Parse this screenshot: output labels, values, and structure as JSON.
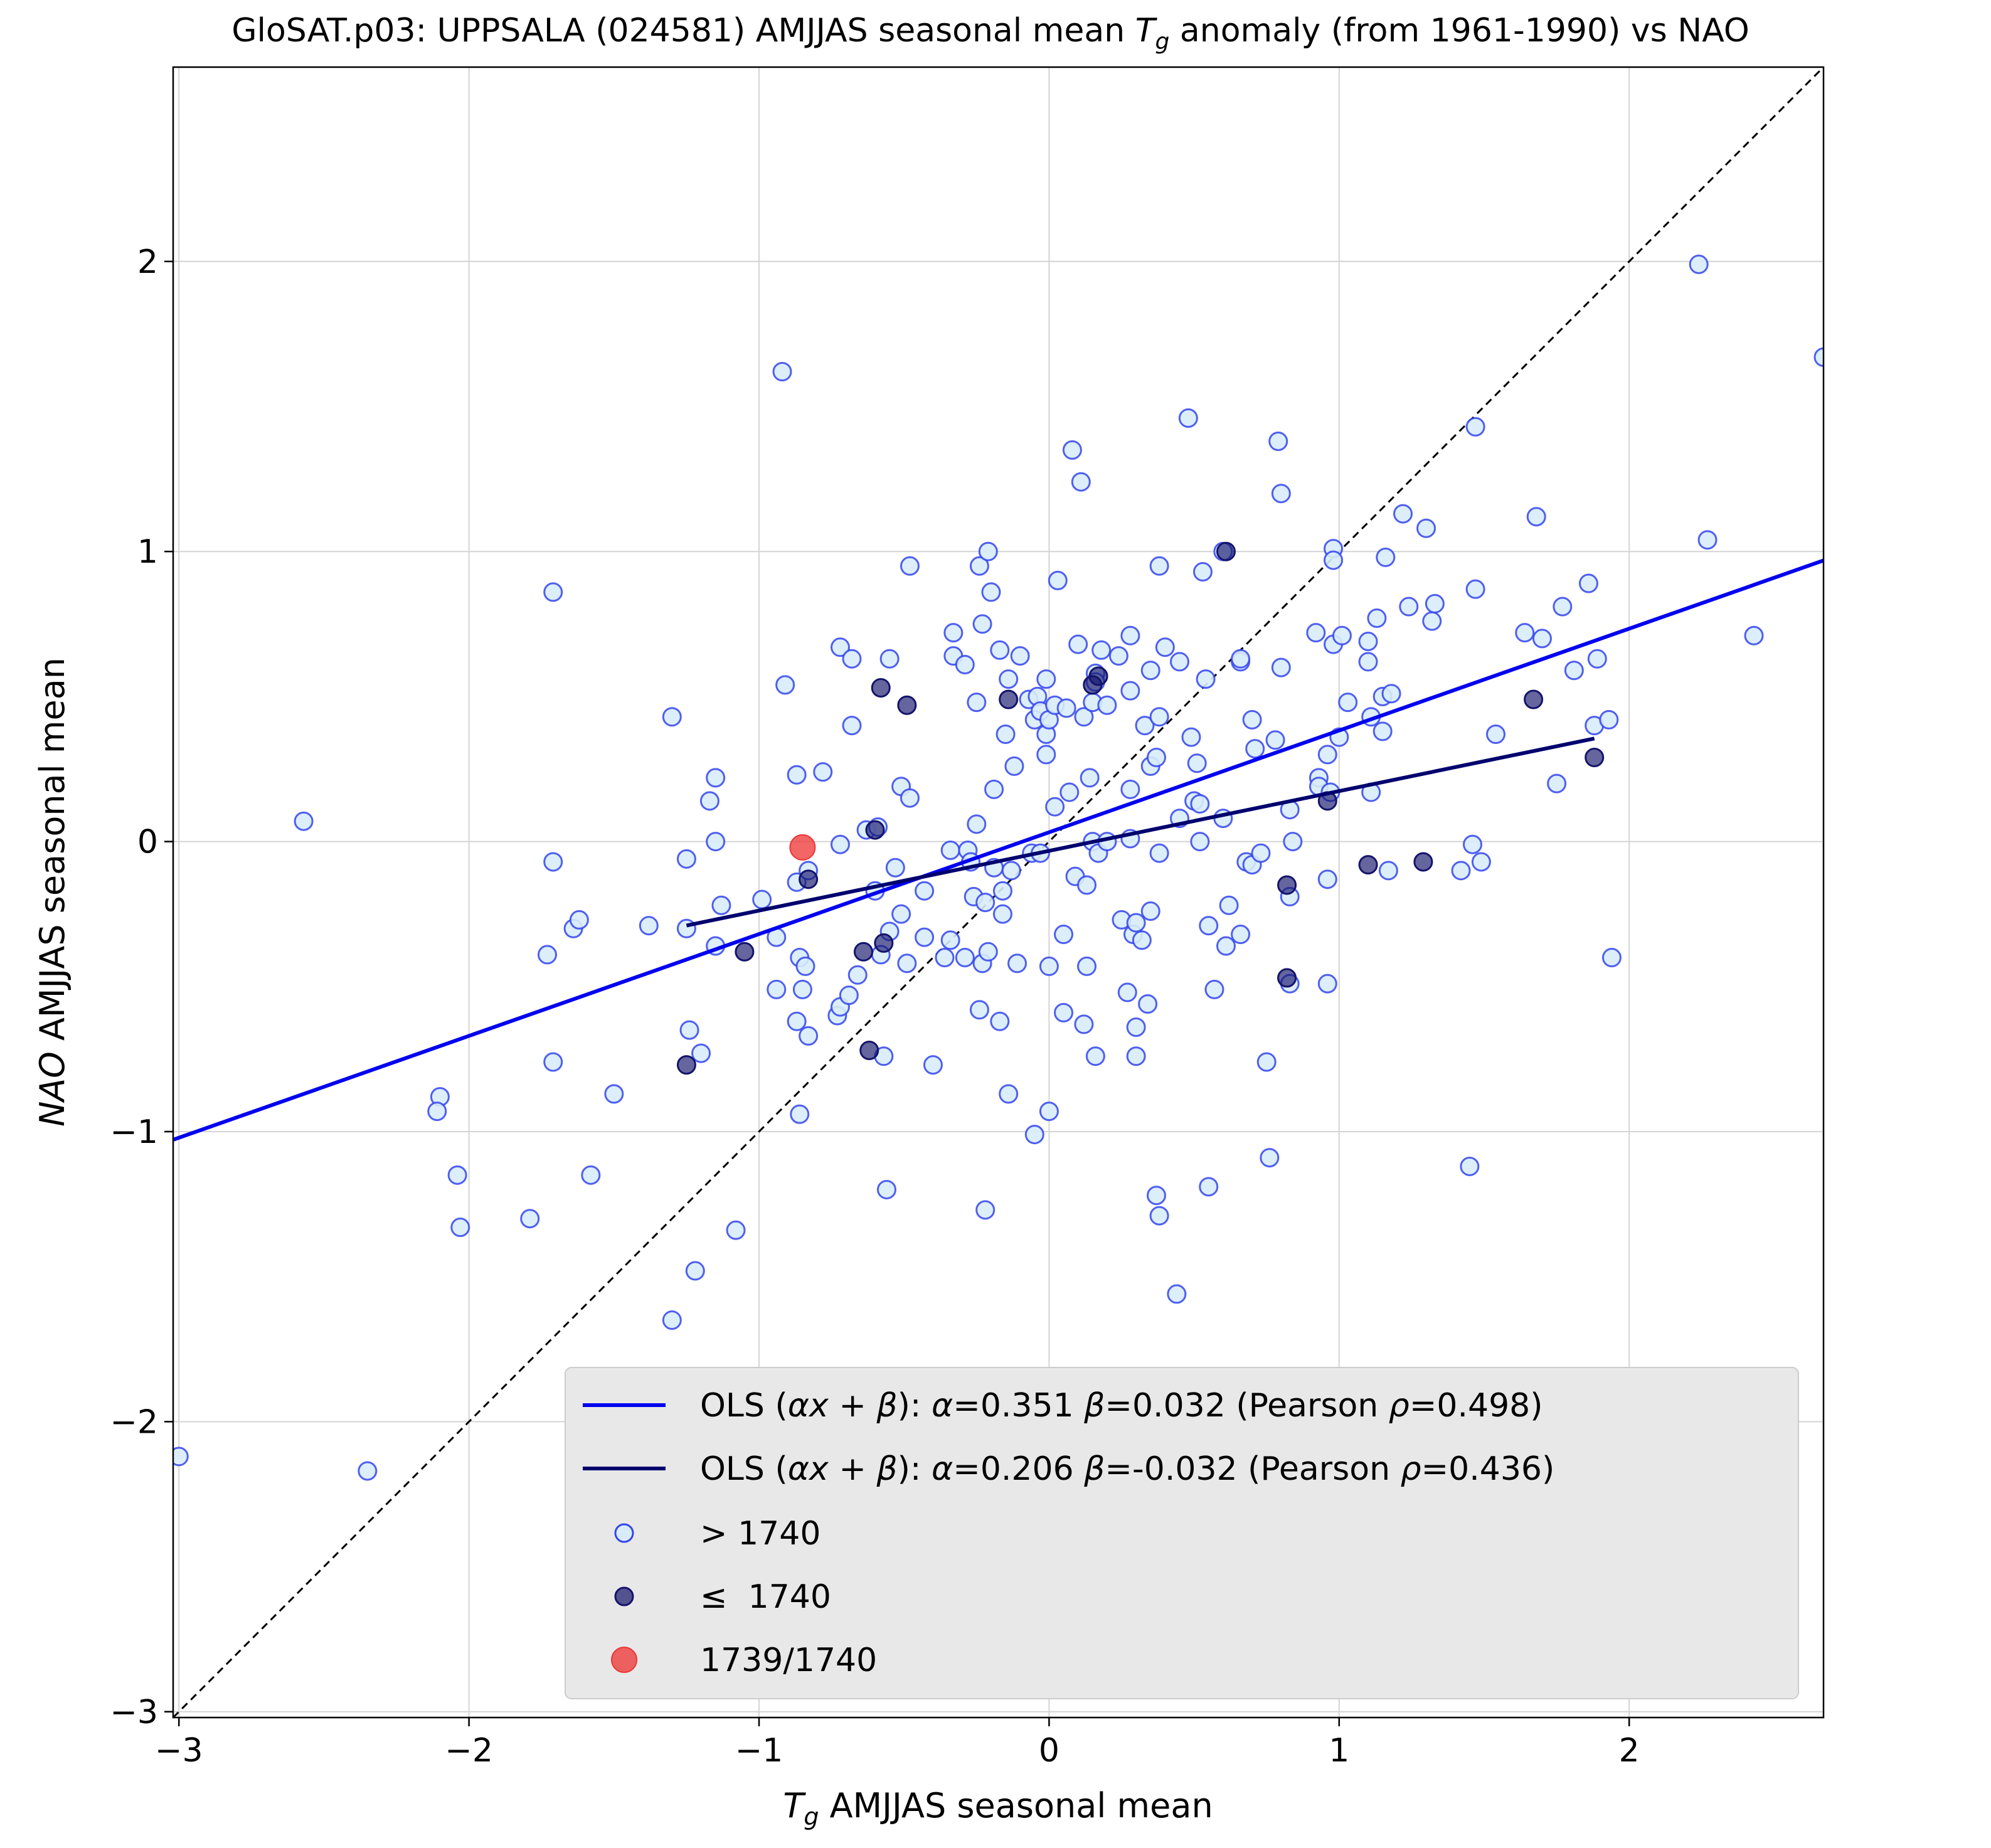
{
  "chart_data": {
    "type": "scatter",
    "title": "GloSAT.p03: UPPSALA (024581) AMJJAS seasonal mean T_g anomaly (from 1961-1990) vs NAO",
    "title_parts": {
      "prefix": "GloSAT.p03: UPPSALA (024581) AMJJAS seasonal mean ",
      "symbol": "T",
      "symbol_sub": "g",
      "suffix": " anomaly (from 1961-1990) vs NAO"
    },
    "xlabel_parts": {
      "symbol": "T",
      "symbol_sub": "g",
      "suffix": " AMJJAS seasonal mean"
    },
    "ylabel_parts": {
      "italic": "NAO",
      "suffix": " AMJJAS seasonal mean"
    },
    "xlim": [
      -3.02,
      2.67
    ],
    "ylim": [
      -3.02,
      2.67
    ],
    "xticks": [
      -3,
      -2,
      -1,
      0,
      1,
      2
    ],
    "yticks": [
      -3,
      -2,
      -1,
      0,
      1,
      2
    ],
    "xtick_labels": [
      "−3",
      "−2",
      "−1",
      "0",
      "1",
      "2"
    ],
    "ytick_labels": [
      "−3",
      "−2",
      "−1",
      "0",
      "1",
      "2"
    ],
    "grid": true,
    "legend_position": "lower-right",
    "colors": {
      "open_marker": "#3344ee",
      "open_fill": "#d8ecf8",
      "dark_marker": "#14146b",
      "highlight": "#ee3333",
      "fit_after": "#0000ee",
      "fit_before": "#00006e",
      "identity": "#000000",
      "legend_bg": "#e8e8e8",
      "grid": "#d4d4d4"
    },
    "identity_line": {
      "from": [
        -3.02,
        -3.02
      ],
      "to": [
        2.67,
        2.67
      ]
    },
    "fits": [
      {
        "name": "OLS (αx + β): α=0.351 β=0.032 (Pearson ρ=0.498)",
        "alpha": 0.351,
        "beta": 0.032,
        "x_range": [
          -3.02,
          2.67
        ]
      },
      {
        "name": "OLS (αx + β): α=0.206 β=-0.032 (Pearson ρ=0.436)",
        "alpha": 0.206,
        "beta": -0.032,
        "x_range": [
          -1.25,
          1.88
        ]
      }
    ],
    "series": [
      {
        "name": "> 1740",
        "points": [
          [
            -3.0,
            -2.12
          ],
          [
            -2.35,
            -2.17
          ],
          [
            -2.57,
            0.07
          ],
          [
            -2.1,
            -0.88
          ],
          [
            -2.11,
            -0.93
          ],
          [
            -2.04,
            -1.15
          ],
          [
            -2.03,
            -1.33
          ],
          [
            -1.79,
            -1.3
          ],
          [
            -1.73,
            -0.39
          ],
          [
            -1.71,
            -0.76
          ],
          [
            -1.71,
            -0.07
          ],
          [
            -1.71,
            0.86
          ],
          [
            -1.64,
            -0.3
          ],
          [
            -1.62,
            -0.27
          ],
          [
            -1.58,
            -1.15
          ],
          [
            -1.5,
            -0.87
          ],
          [
            -1.38,
            -0.29
          ],
          [
            -1.3,
            0.43
          ],
          [
            -1.3,
            -1.65
          ],
          [
            -1.25,
            -0.3
          ],
          [
            -1.25,
            -0.06
          ],
          [
            -1.24,
            -0.65
          ],
          [
            -1.22,
            -1.48
          ],
          [
            -1.2,
            -0.73
          ],
          [
            -1.17,
            0.14
          ],
          [
            -1.15,
            0.22
          ],
          [
            -1.15,
            0.0
          ],
          [
            -1.15,
            -0.36
          ],
          [
            -1.13,
            -0.22
          ],
          [
            -1.08,
            -1.34
          ],
          [
            -0.99,
            -0.2
          ],
          [
            -0.94,
            -0.33
          ],
          [
            -0.94,
            -0.51
          ],
          [
            -0.92,
            1.62
          ],
          [
            -0.91,
            0.54
          ],
          [
            -0.87,
            0.23
          ],
          [
            -0.87,
            -0.14
          ],
          [
            -0.87,
            -0.62
          ],
          [
            -0.86,
            -0.4
          ],
          [
            -0.86,
            -0.94
          ],
          [
            -0.85,
            -0.51
          ],
          [
            -0.84,
            -0.43
          ],
          [
            -0.83,
            -0.67
          ],
          [
            -0.83,
            -0.1
          ],
          [
            -0.78,
            0.24
          ],
          [
            -0.73,
            -0.6
          ],
          [
            -0.72,
            0.67
          ],
          [
            -0.72,
            -0.01
          ],
          [
            -0.72,
            -0.57
          ],
          [
            -0.69,
            -0.53
          ],
          [
            -0.68,
            0.63
          ],
          [
            -0.68,
            0.4
          ],
          [
            -0.66,
            -0.46
          ],
          [
            -0.63,
            0.04
          ],
          [
            -0.6,
            -0.17
          ],
          [
            -0.59,
            0.05
          ],
          [
            -0.58,
            -0.39
          ],
          [
            -0.57,
            -0.74
          ],
          [
            -0.56,
            -1.2
          ],
          [
            -0.55,
            0.63
          ],
          [
            -0.55,
            -0.31
          ],
          [
            -0.53,
            -0.09
          ],
          [
            -0.51,
            0.19
          ],
          [
            -0.51,
            -0.25
          ],
          [
            -0.49,
            -0.42
          ],
          [
            -0.48,
            0.95
          ],
          [
            -0.48,
            0.15
          ],
          [
            -0.43,
            -0.17
          ],
          [
            -0.43,
            -0.33
          ],
          [
            -0.4,
            -0.77
          ],
          [
            -0.36,
            -0.4
          ],
          [
            -0.34,
            -0.34
          ],
          [
            -0.34,
            -0.03
          ],
          [
            -0.33,
            0.72
          ],
          [
            -0.33,
            0.64
          ],
          [
            -0.29,
            0.61
          ],
          [
            -0.29,
            -0.4
          ],
          [
            -0.28,
            -0.03
          ],
          [
            -0.27,
            -0.07
          ],
          [
            -0.26,
            -0.19
          ],
          [
            -0.25,
            0.06
          ],
          [
            -0.25,
            0.48
          ],
          [
            -0.24,
            0.95
          ],
          [
            -0.24,
            -0.58
          ],
          [
            -0.23,
            0.75
          ],
          [
            -0.23,
            -0.42
          ],
          [
            -0.22,
            -0.21
          ],
          [
            -0.22,
            -1.27
          ],
          [
            -0.21,
            1.0
          ],
          [
            -0.21,
            -0.38
          ],
          [
            -0.2,
            0.86
          ],
          [
            -0.19,
            0.18
          ],
          [
            -0.19,
            -0.09
          ],
          [
            -0.17,
            0.66
          ],
          [
            -0.17,
            -0.62
          ],
          [
            -0.16,
            -0.25
          ],
          [
            -0.16,
            -0.17
          ],
          [
            -0.15,
            0.37
          ],
          [
            -0.14,
            0.56
          ],
          [
            -0.14,
            -0.87
          ],
          [
            -0.13,
            -0.1
          ],
          [
            -0.12,
            0.26
          ],
          [
            -0.11,
            -0.42
          ],
          [
            -0.1,
            0.64
          ],
          [
            -0.07,
            0.49
          ],
          [
            -0.06,
            -0.04
          ],
          [
            -0.05,
            -1.01
          ],
          [
            -0.05,
            0.42
          ],
          [
            -0.04,
            0.5
          ],
          [
            -0.03,
            0.45
          ],
          [
            -0.03,
            -0.04
          ],
          [
            -0.01,
            0.37
          ],
          [
            -0.01,
            0.3
          ],
          [
            -0.01,
            0.56
          ],
          [
            0.0,
            0.42
          ],
          [
            0.0,
            -0.43
          ],
          [
            0.0,
            -0.93
          ],
          [
            0.02,
            0.12
          ],
          [
            0.02,
            0.47
          ],
          [
            0.03,
            0.9
          ],
          [
            0.05,
            -0.59
          ],
          [
            0.05,
            -0.32
          ],
          [
            0.06,
            0.46
          ],
          [
            0.07,
            0.17
          ],
          [
            0.08,
            1.35
          ],
          [
            0.09,
            -0.12
          ],
          [
            0.1,
            0.68
          ],
          [
            0.11,
            1.24
          ],
          [
            0.12,
            0.43
          ],
          [
            0.12,
            -0.63
          ],
          [
            0.13,
            -0.43
          ],
          [
            0.13,
            -0.15
          ],
          [
            0.14,
            0.22
          ],
          [
            0.15,
            0.0
          ],
          [
            0.15,
            0.48
          ],
          [
            0.16,
            0.58
          ],
          [
            0.16,
            0.55
          ],
          [
            0.16,
            -0.74
          ],
          [
            0.17,
            -0.04
          ],
          [
            0.18,
            0.66
          ],
          [
            0.2,
            0.47
          ],
          [
            0.2,
            0.0
          ],
          [
            0.24,
            0.64
          ],
          [
            0.25,
            -0.27
          ],
          [
            0.27,
            -0.52
          ],
          [
            0.28,
            0.01
          ],
          [
            0.28,
            0.18
          ],
          [
            0.28,
            0.71
          ],
          [
            0.28,
            0.52
          ],
          [
            0.29,
            -0.32
          ],
          [
            0.3,
            -0.28
          ],
          [
            0.3,
            -0.74
          ],
          [
            0.3,
            -0.64
          ],
          [
            0.32,
            -0.34
          ],
          [
            0.33,
            0.4
          ],
          [
            0.34,
            -0.56
          ],
          [
            0.35,
            0.26
          ],
          [
            0.35,
            0.59
          ],
          [
            0.35,
            -0.24
          ],
          [
            0.37,
            -1.22
          ],
          [
            0.37,
            0.29
          ],
          [
            0.38,
            0.95
          ],
          [
            0.38,
            0.43
          ],
          [
            0.38,
            -0.04
          ],
          [
            0.38,
            -1.29
          ],
          [
            0.4,
            0.67
          ],
          [
            0.44,
            -1.56
          ],
          [
            0.45,
            0.62
          ],
          [
            0.45,
            0.08
          ],
          [
            0.48,
            1.46
          ],
          [
            0.49,
            0.36
          ],
          [
            0.5,
            0.14
          ],
          [
            0.51,
            0.27
          ],
          [
            0.52,
            0.13
          ],
          [
            0.52,
            0.0
          ],
          [
            0.53,
            0.93
          ],
          [
            0.54,
            0.56
          ],
          [
            0.55,
            -0.29
          ],
          [
            0.55,
            -1.19
          ],
          [
            0.57,
            -0.51
          ],
          [
            0.6,
            0.08
          ],
          [
            0.6,
            1.0
          ],
          [
            0.61,
            -0.36
          ],
          [
            0.62,
            -0.22
          ],
          [
            0.66,
            -0.32
          ],
          [
            0.66,
            0.62
          ],
          [
            0.66,
            0.63
          ],
          [
            0.68,
            -0.07
          ],
          [
            0.7,
            0.42
          ],
          [
            0.7,
            -0.08
          ],
          [
            0.71,
            0.32
          ],
          [
            0.73,
            -0.04
          ],
          [
            0.75,
            -0.76
          ],
          [
            0.76,
            -1.09
          ],
          [
            0.78,
            0.35
          ],
          [
            0.79,
            1.38
          ],
          [
            0.8,
            0.6
          ],
          [
            0.8,
            1.2
          ],
          [
            0.83,
            -0.49
          ],
          [
            0.83,
            -0.19
          ],
          [
            0.83,
            0.11
          ],
          [
            0.84,
            0.0
          ],
          [
            0.92,
            0.72
          ],
          [
            0.93,
            0.22
          ],
          [
            0.93,
            0.19
          ],
          [
            0.96,
            0.3
          ],
          [
            0.96,
            -0.49
          ],
          [
            0.96,
            -0.13
          ],
          [
            0.97,
            0.17
          ],
          [
            0.98,
            1.01
          ],
          [
            0.98,
            0.97
          ],
          [
            0.98,
            0.68
          ],
          [
            1.0,
            0.36
          ],
          [
            1.01,
            0.71
          ],
          [
            1.03,
            0.48
          ],
          [
            1.1,
            0.69
          ],
          [
            1.1,
            0.62
          ],
          [
            1.11,
            0.17
          ],
          [
            1.11,
            0.43
          ],
          [
            1.13,
            0.77
          ],
          [
            1.15,
            0.5
          ],
          [
            1.15,
            0.38
          ],
          [
            1.16,
            0.98
          ],
          [
            1.17,
            -0.1
          ],
          [
            1.18,
            0.51
          ],
          [
            1.22,
            1.13
          ],
          [
            1.24,
            0.81
          ],
          [
            1.3,
            1.08
          ],
          [
            1.32,
            0.76
          ],
          [
            1.33,
            0.82
          ],
          [
            1.42,
            -0.1
          ],
          [
            1.45,
            -1.12
          ],
          [
            1.46,
            -0.01
          ],
          [
            1.47,
            0.87
          ],
          [
            1.47,
            1.43
          ],
          [
            1.49,
            -0.07
          ],
          [
            1.54,
            0.37
          ],
          [
            1.64,
            0.72
          ],
          [
            1.68,
            1.12
          ],
          [
            1.7,
            0.7
          ],
          [
            1.75,
            0.2
          ],
          [
            1.77,
            0.81
          ],
          [
            1.81,
            0.59
          ],
          [
            1.86,
            0.89
          ],
          [
            1.88,
            0.4
          ],
          [
            1.89,
            0.63
          ],
          [
            1.93,
            0.42
          ],
          [
            1.94,
            -0.4
          ],
          [
            2.24,
            1.99
          ],
          [
            2.27,
            1.04
          ],
          [
            2.43,
            0.71
          ],
          [
            2.67,
            1.67
          ]
        ]
      },
      {
        "name": "≤  1740",
        "points": [
          [
            -1.25,
            -0.77
          ],
          [
            -1.05,
            -0.38
          ],
          [
            -0.83,
            -0.13
          ],
          [
            -0.64,
            -0.38
          ],
          [
            -0.62,
            -0.72
          ],
          [
            -0.6,
            0.04
          ],
          [
            -0.58,
            0.53
          ],
          [
            -0.57,
            -0.35
          ],
          [
            -0.49,
            0.47
          ],
          [
            -0.14,
            0.49
          ],
          [
            0.15,
            0.54
          ],
          [
            0.17,
            0.57
          ],
          [
            0.61,
            1.0
          ],
          [
            0.82,
            -0.47
          ],
          [
            0.82,
            -0.15
          ],
          [
            0.96,
            0.14
          ],
          [
            1.1,
            -0.08
          ],
          [
            1.29,
            -0.07
          ],
          [
            1.67,
            0.49
          ],
          [
            1.88,
            0.29
          ]
        ]
      },
      {
        "name": "1739/1740",
        "points": [
          [
            -0.85,
            -0.02
          ]
        ]
      }
    ]
  }
}
